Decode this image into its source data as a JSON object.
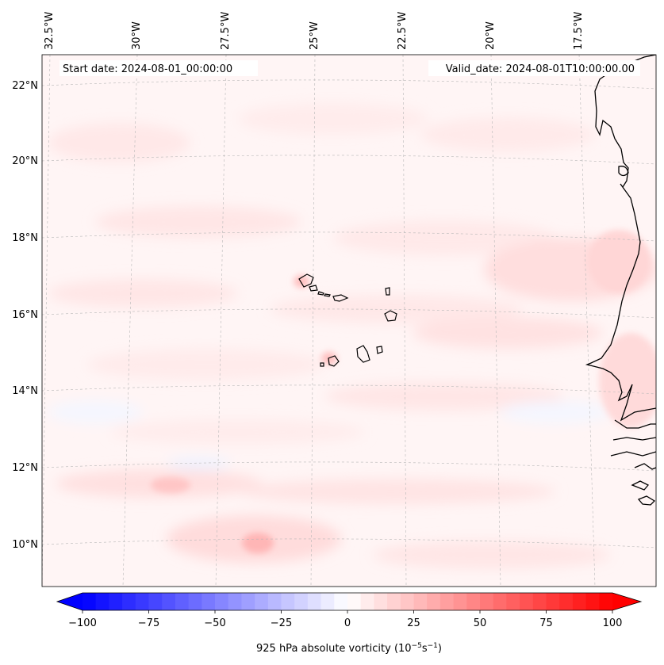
{
  "annotations": {
    "start": "Start date: 2024-08-01_00:00:00",
    "valid": "Valid_date: 2024-08-01T10:00:00.00"
  },
  "longitude_labels": [
    "32.5°W",
    "30°W",
    "27.5°W",
    "25°W",
    "22.5°W",
    "20°W",
    "17.5°W"
  ],
  "latitude_labels": [
    "22°N",
    "20°N",
    "18°N",
    "16°N",
    "14°N",
    "12°N",
    "10°N"
  ],
  "colorbar": {
    "label": "925 hPa absolute vorticity (10",
    "label_exp": "−5",
    "label_unit": "s",
    "label_unit_exp": "−1",
    "label_close": ")",
    "ticks": [
      "−100",
      "−75",
      "−50",
      "−25",
      "0",
      "25",
      "50",
      "75",
      "100"
    ],
    "min": -100,
    "max": 100,
    "colors": {
      "low": "#0000ff",
      "mid": "#ffffff",
      "high": "#ff0000"
    }
  },
  "colors": {
    "coastline": "#000000",
    "gridline": "#b0b0b0",
    "background_field": "#fff4f4"
  }
}
